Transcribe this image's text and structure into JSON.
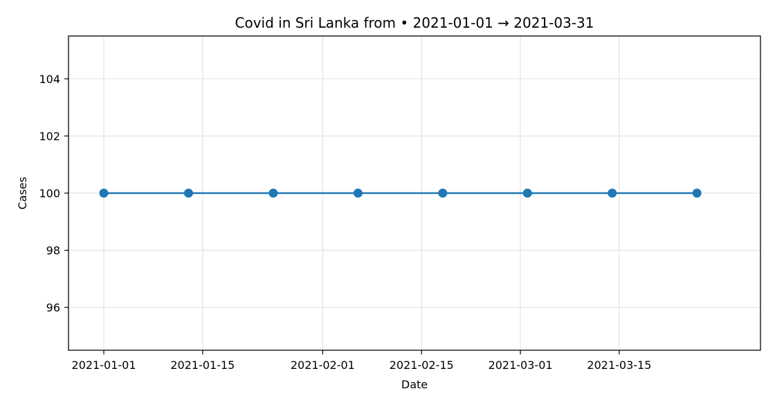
{
  "chart_data": {
    "type": "line",
    "title": "Covid in Sri Lanka from • 2021-01-01 → 2021-03-31",
    "xlabel": "Date",
    "ylabel": "Cases",
    "xlim": [
      "2020-12-27",
      "2021-04-04"
    ],
    "ylim": [
      94.5,
      105.5
    ],
    "x_ticks": [
      "2021-01-01",
      "2021-01-15",
      "2021-02-01",
      "2021-02-15",
      "2021-03-01",
      "2021-03-15"
    ],
    "y_ticks": [
      96,
      98,
      100,
      102,
      104
    ],
    "grid": true,
    "series": [
      {
        "color": "#1f77b4",
        "x": [
          "2021-01-01",
          "2021-01-13",
          "2021-01-25",
          "2021-02-06",
          "2021-02-18",
          "2021-03-02",
          "2021-03-14",
          "2021-03-26"
        ],
        "y": [
          100,
          100,
          100,
          100,
          100,
          100,
          100,
          100
        ]
      }
    ]
  }
}
